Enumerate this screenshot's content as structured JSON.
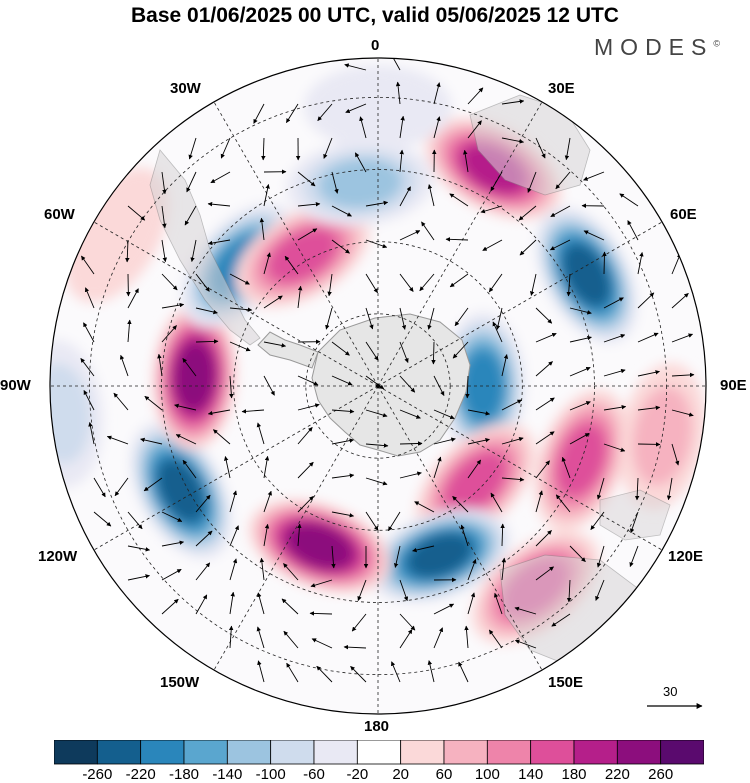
{
  "title": "Base 01/06/2025 00 UTC, valid 05/06/2025 12 UTC",
  "brand": "MODES",
  "brand_mark": "©",
  "longitude_labels": {
    "lon_0": "0",
    "lon_30e": "30E",
    "lon_60e": "60E",
    "lon_90e": "90E",
    "lon_120e": "120E",
    "lon_150e": "150E",
    "lon_180": "180",
    "lon_150w": "150W",
    "lon_120w": "120W",
    "lon_90w": "90W",
    "lon_60w": "60W",
    "lon_30w": "30W"
  },
  "vector_scale_label": "30",
  "colorbar": {
    "ticks": [
      "-260",
      "-220",
      "-180",
      "-140",
      "-100",
      "-60",
      "-20",
      "20",
      "60",
      "100",
      "140",
      "180",
      "220",
      "260"
    ],
    "colors": [
      "#0e3a5c",
      "#145f8e",
      "#2a86bb",
      "#5aa6cf",
      "#9cc4e0",
      "#cfdced",
      "#e9e9f4",
      "#ffffff",
      "#fbd9d9",
      "#f6b2c0",
      "#ee84aa",
      "#de4f9a",
      "#b51f8a",
      "#8c0e7d",
      "#5a0a6e"
    ]
  },
  "anomaly_fields": [
    {
      "lon": 90,
      "colat": 0.32,
      "value": -200
    },
    {
      "lon": 135,
      "colat": 0.42,
      "value": 160
    },
    {
      "lon": 160,
      "colat": 0.55,
      "value": -240
    },
    {
      "lon": 200,
      "colat": 0.52,
      "value": 240
    },
    {
      "lon": 242,
      "colat": 0.68,
      "value": -260
    },
    {
      "lon": 273,
      "colat": 0.56,
      "value": 250
    },
    {
      "lon": 311,
      "colat": 0.56,
      "value": -220
    },
    {
      "lon": 330,
      "colat": 0.46,
      "value": 180
    },
    {
      "lon": 355,
      "colat": 0.62,
      "value": -120
    },
    {
      "lon": 28,
      "colat": 0.75,
      "value": 200
    },
    {
      "lon": 62,
      "colat": 0.72,
      "value": -240
    },
    {
      "lon": 110,
      "colat": 0.66,
      "value": 160
    },
    {
      "lon": 142,
      "colat": 0.78,
      "value": 170
    },
    {
      "lon": 265,
      "colat": 0.97,
      "value": -100
    },
    {
      "lon": 300,
      "colat": 0.92,
      "value": 40
    },
    {
      "lon": 0,
      "colat": 0.85,
      "value": -60
    },
    {
      "lon": 100,
      "colat": 0.88,
      "value": 80
    }
  ]
}
